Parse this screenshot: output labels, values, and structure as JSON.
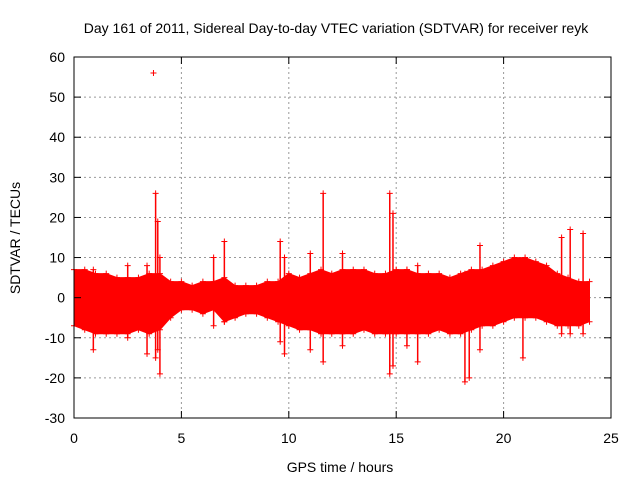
{
  "chart_data": {
    "type": "scatter",
    "title": "Day 161 of 2011, Sidereal Day-to-day VTEC variation (SDTVAR) for receiver reyk",
    "xlabel": "GPS time / hours",
    "ylabel": "SDTVAR / TECUs",
    "xlim": [
      0,
      25
    ],
    "ylim": [
      -30,
      60
    ],
    "x_ticks": [
      0,
      5,
      10,
      15,
      20,
      25
    ],
    "x_tick_labels": [
      "0",
      "5",
      "10",
      "15",
      "20",
      "25"
    ],
    "y_ticks": [
      -30,
      -20,
      -10,
      0,
      10,
      20,
      30,
      40,
      50,
      60
    ],
    "y_tick_labels": [
      "-30",
      "-20",
      "-10",
      "0",
      "10",
      "20",
      "30",
      "40",
      "50",
      "60"
    ],
    "grid": true,
    "series_color": "#ff0000",
    "marker": "+",
    "envelope": {
      "x": [
        0.0,
        0.5,
        1.0,
        1.5,
        2.0,
        2.5,
        3.0,
        3.5,
        4.0,
        4.5,
        5.0,
        5.5,
        6.0,
        6.5,
        7.0,
        7.5,
        8.0,
        8.5,
        9.0,
        9.5,
        10.0,
        10.5,
        11.0,
        11.5,
        12.0,
        12.5,
        13.0,
        13.5,
        14.0,
        14.5,
        15.0,
        15.5,
        16.0,
        16.5,
        17.0,
        17.5,
        18.0,
        18.5,
        19.0,
        19.5,
        20.0,
        20.5,
        21.0,
        21.5,
        22.0,
        22.5,
        23.0,
        23.5,
        24.0
      ],
      "upper": [
        7,
        7,
        6,
        6,
        5,
        5,
        5,
        6,
        6,
        4,
        4,
        3,
        4,
        4,
        5,
        3,
        3,
        3,
        4,
        4,
        6,
        5,
        6,
        7,
        6,
        7,
        7,
        7,
        6,
        6,
        7,
        7,
        6,
        6,
        6,
        5,
        6,
        7,
        7,
        8,
        9,
        10,
        10,
        9,
        8,
        6,
        5,
        4,
        4
      ],
      "lower": [
        -7,
        -8,
        -9,
        -9,
        -9,
        -9,
        -8,
        -9,
        -8,
        -5,
        -3,
        -3,
        -4,
        -3,
        -6,
        -5,
        -4,
        -4,
        -5,
        -6,
        -7,
        -8,
        -8,
        -9,
        -9,
        -9,
        -9,
        -8,
        -9,
        -9,
        -9,
        -9,
        -9,
        -9,
        -8,
        -9,
        -9,
        -8,
        -7,
        -7,
        -6,
        -5,
        -5,
        -5,
        -6,
        -7,
        -7,
        -7,
        -6
      ]
    },
    "spikes": [
      {
        "x": 0.9,
        "lo": -13,
        "hi": 7
      },
      {
        "x": 2.5,
        "lo": -10,
        "hi": 8
      },
      {
        "x": 3.4,
        "lo": -14,
        "hi": 8
      },
      {
        "x": 3.8,
        "lo": -15,
        "hi": 26
      },
      {
        "x": 3.9,
        "lo": -13,
        "hi": 19
      },
      {
        "x": 4.0,
        "lo": -19,
        "hi": 10
      },
      {
        "x": 6.5,
        "lo": -7,
        "hi": 10
      },
      {
        "x": 7.0,
        "lo": -6,
        "hi": 14
      },
      {
        "x": 9.6,
        "lo": -11,
        "hi": 14
      },
      {
        "x": 9.8,
        "lo": -14,
        "hi": 10
      },
      {
        "x": 11.0,
        "lo": -13,
        "hi": 11
      },
      {
        "x": 11.6,
        "lo": -16,
        "hi": 26
      },
      {
        "x": 12.5,
        "lo": -12,
        "hi": 11
      },
      {
        "x": 14.7,
        "lo": -19,
        "hi": 26
      },
      {
        "x": 14.85,
        "lo": -17,
        "hi": 21
      },
      {
        "x": 15.5,
        "lo": -12,
        "hi": 7
      },
      {
        "x": 16.0,
        "lo": -16,
        "hi": 8
      },
      {
        "x": 18.2,
        "lo": -21,
        "hi": 6
      },
      {
        "x": 18.4,
        "lo": -20,
        "hi": 6
      },
      {
        "x": 18.9,
        "lo": -13,
        "hi": 13
      },
      {
        "x": 20.9,
        "lo": -15,
        "hi": 9
      },
      {
        "x": 22.7,
        "lo": -9,
        "hi": 15
      },
      {
        "x": 23.1,
        "lo": -9,
        "hi": 17
      },
      {
        "x": 23.7,
        "lo": -9,
        "hi": 16
      }
    ],
    "outliers": [
      {
        "x": 3.7,
        "y": 56
      }
    ]
  }
}
